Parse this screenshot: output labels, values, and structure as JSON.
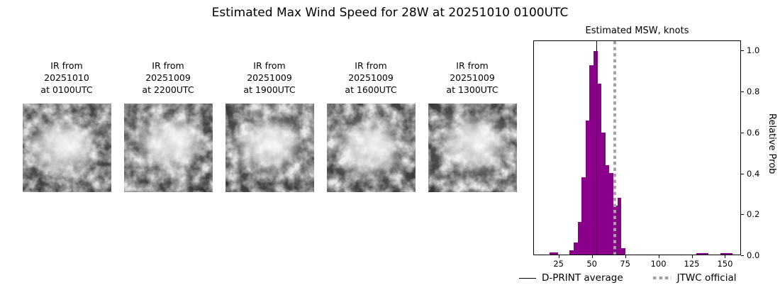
{
  "title": "Estimated Max Wind Speed for 28W at 20251010 0100UTC",
  "panels": [
    {
      "label": "IR from\n20251010\nat 0100UTC"
    },
    {
      "label": "IR from\n20251009\nat 2200UTC"
    },
    {
      "label": "IR from\n20251009\nat 1900UTC"
    },
    {
      "label": "IR from\n20251009\nat 1600UTC"
    },
    {
      "label": "IR from\n20251009\nat 1300UTC"
    }
  ],
  "chart_data": {
    "type": "bar",
    "title": "Estimated MSW, knots",
    "xlabel": "",
    "ylabel": "Relative Prob",
    "xlim": [
      6,
      162
    ],
    "ylim": [
      0,
      1.05
    ],
    "xticks": [
      25,
      50,
      75,
      100,
      125,
      150
    ],
    "yticks": [
      0.0,
      0.2,
      0.4,
      0.6,
      0.8,
      1.0
    ],
    "grid": false,
    "legend_position": "bottom",
    "bar_color": "#8B008B",
    "avg_line_color": "#000000",
    "jtwc_line_color": "#a3a3a3",
    "bin_width": 3,
    "bars": [
      {
        "x": 18,
        "p": 0.012
      },
      {
        "x": 21,
        "p": 0.012
      },
      {
        "x": 33,
        "p": 0.02
      },
      {
        "x": 36,
        "p": 0.06
      },
      {
        "x": 39,
        "p": 0.16
      },
      {
        "x": 42,
        "p": 0.38
      },
      {
        "x": 45,
        "p": 0.66
      },
      {
        "x": 48,
        "p": 0.93
      },
      {
        "x": 51,
        "p": 1.0
      },
      {
        "x": 54,
        "p": 0.84
      },
      {
        "x": 57,
        "p": 0.6
      },
      {
        "x": 60,
        "p": 0.44
      },
      {
        "x": 63,
        "p": 0.4
      },
      {
        "x": 66,
        "p": 0.24
      },
      {
        "x": 69,
        "p": 0.28
      },
      {
        "x": 72,
        "p": 0.03
      },
      {
        "x": 129,
        "p": 0.006
      },
      {
        "x": 132,
        "p": 0.006
      },
      {
        "x": 135,
        "p": 0.006
      },
      {
        "x": 147,
        "p": 0.006
      },
      {
        "x": 150,
        "p": 0.006
      },
      {
        "x": 153,
        "p": 0.006
      }
    ],
    "dprint_average": 53,
    "jtwc_official": 67,
    "legend": [
      "D-PRINT average",
      "JTWC official"
    ]
  }
}
